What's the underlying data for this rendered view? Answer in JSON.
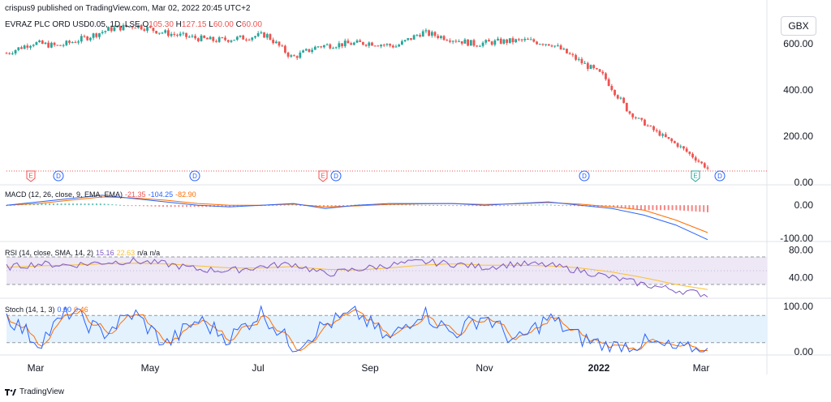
{
  "header": {
    "publisher": "crispus9 published on TradingView.com, Mar 02, 2022 20:45 UTC+2",
    "symbol": "EVRAZ PLC ORD USD0.05, 1D, LSE",
    "o_label": "O",
    "o_value": "105.30",
    "h_label": "H",
    "h_value": "127.15",
    "l_label": "L",
    "l_value": "60.00",
    "c_label": "C",
    "c_value": "60.00"
  },
  "currency": "GBX",
  "macd_label": {
    "title": "MACD (12, 26, close, 9, EMA, EMA)",
    "v1": "-21.35",
    "v2": "-104.25",
    "v3": "-82.90"
  },
  "rsi_label": {
    "title": "RSI (14, close, SMA, 14, 2)",
    "v1": "15.16",
    "v2": "22.63",
    "v3": "n/a",
    "v4": "n/a"
  },
  "stoch_label": {
    "title": "Stoch (14, 1, 3)",
    "v1": "0.00",
    "v2": "0.46"
  },
  "footer": {
    "brand": "TradingView"
  },
  "colors": {
    "up": "#26a69a",
    "down": "#ef5350",
    "macd": "#2962ff",
    "signal": "#ff6d00",
    "rsi": "#7e57c2",
    "rsi_ma": "#fbc02d",
    "stoch_k": "#2962ff",
    "stoch_d": "#ff6d00",
    "rsi_band": "#ede7f6",
    "stoch_band": "#e3f2fd"
  },
  "chart_data": [
    {
      "type": "candlestick",
      "title": "EVRAZ PLC ORD USD0.05, 1D, LSE",
      "ylabel": "GBX",
      "ylim": [
        0,
        720
      ],
      "yticks": [
        "0.00",
        "200.00",
        "400.00",
        "600.00"
      ],
      "xticks": [
        "Mar",
        "May",
        "Jul",
        "Sep",
        "Nov",
        "2022",
        "Mar"
      ],
      "series": [
        {
          "name": "Close",
          "x": [
            "2021-03-01",
            "2021-03-15",
            "2021-04-01",
            "2021-04-15",
            "2021-05-01",
            "2021-05-15",
            "2021-06-01",
            "2021-06-15",
            "2021-07-01",
            "2021-07-15",
            "2021-08-01",
            "2021-08-15",
            "2021-09-01",
            "2021-09-15",
            "2021-10-01",
            "2021-10-15",
            "2021-11-01",
            "2021-11-15",
            "2021-12-01",
            "2021-12-15",
            "2022-01-03",
            "2022-01-17",
            "2022-02-01",
            "2022-02-10",
            "2022-02-17",
            "2022-02-24",
            "2022-02-28",
            "2022-03-02"
          ],
          "values": [
            560,
            605,
            590,
            625,
            665,
            680,
            650,
            630,
            615,
            625,
            640,
            540,
            590,
            600,
            605,
            590,
            650,
            625,
            600,
            610,
            615,
            600,
            530,
            460,
            300,
            220,
            150,
            60
          ]
        }
      ],
      "markers": [
        "E",
        "D",
        "D",
        "E",
        "D",
        "D",
        "E",
        "D"
      ]
    },
    {
      "type": "line",
      "title": "MACD (12, 26, close, 9, EMA, EMA)",
      "yticks": [
        "0.00",
        "-100.00"
      ],
      "series": [
        {
          "name": "MACD",
          "values": [
            0,
            10,
            20,
            30,
            20,
            10,
            0,
            -5,
            0,
            5,
            -10,
            0,
            5,
            5,
            5,
            0,
            5,
            10,
            0,
            -10,
            -30,
            -60,
            -104.25
          ]
        },
        {
          "name": "Signal",
          "values": [
            0,
            5,
            15,
            25,
            22,
            15,
            5,
            0,
            0,
            3,
            -5,
            -2,
            2,
            4,
            5,
            2,
            4,
            8,
            3,
            -5,
            -15,
            -45,
            -82.9
          ]
        }
      ]
    },
    {
      "type": "line",
      "title": "RSI (14, close, SMA, 14, 2)",
      "yticks": [
        "80.00",
        "40.00"
      ],
      "series": [
        {
          "name": "RSI",
          "values": [
            55,
            60,
            58,
            62,
            64,
            60,
            52,
            50,
            56,
            60,
            45,
            52,
            58,
            63,
            60,
            55,
            60,
            58,
            50,
            40,
            30,
            22,
            15.16
          ]
        },
        {
          "name": "RSI MA",
          "values": [
            55,
            57,
            58,
            60,
            61,
            60,
            57,
            54,
            54,
            56,
            52,
            51,
            54,
            58,
            60,
            58,
            58,
            57,
            54,
            48,
            40,
            30,
            22.63
          ]
        }
      ]
    },
    {
      "type": "line",
      "title": "Stoch (14, 1, 3)",
      "yticks": [
        "100.00",
        "0.00"
      ],
      "series": [
        {
          "name": "%K",
          "values": [
            80,
            20,
            90,
            40,
            85,
            15,
            70,
            30,
            88,
            10,
            60,
            85,
            25,
            90,
            40,
            80,
            20,
            75,
            30,
            10,
            20,
            5,
            0.0
          ]
        },
        {
          "name": "%D",
          "values": [
            70,
            30,
            80,
            45,
            80,
            25,
            65,
            35,
            80,
            20,
            55,
            80,
            30,
            85,
            45,
            75,
            25,
            70,
            35,
            15,
            18,
            8,
            0.46
          ]
        }
      ]
    }
  ]
}
